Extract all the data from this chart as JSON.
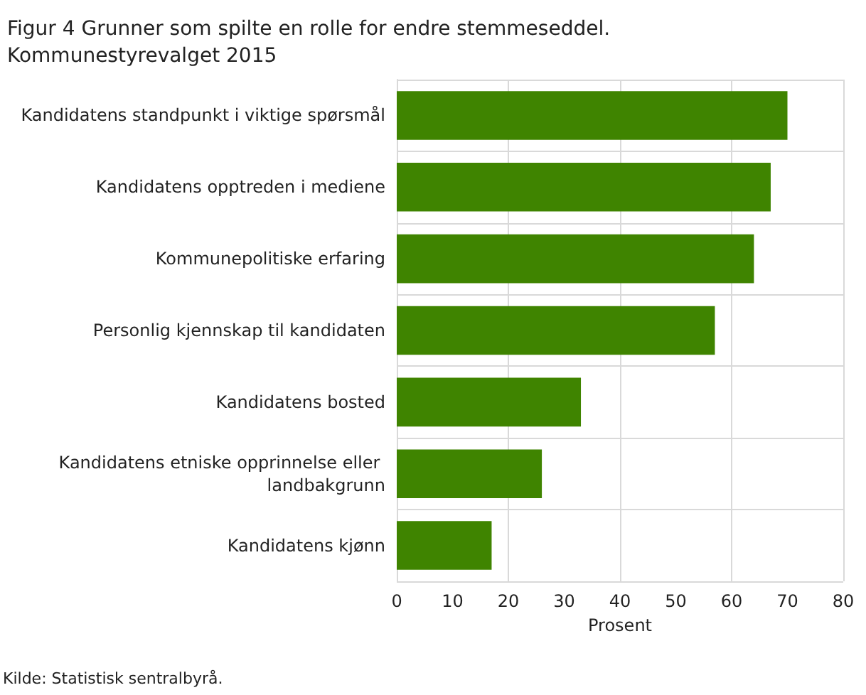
{
  "chart_data": {
    "type": "bar",
    "orientation": "horizontal",
    "title": "Figur 4 Grunner som spilte en rolle for endre stemmeseddel. Kommunestyrevalget 2015",
    "xlabel": "Prosent",
    "categories": [
      "Kandidatens standpunkt i viktige spørsmål",
      "Kandidatens opptreden i mediene",
      "Kommunepolitiske erfaring",
      "Personlig kjennskap til kandidaten",
      "Kandidatens bosted",
      "Kandidatens etniske opprinnelse eller landbakgrunn",
      "Kandidatens kjønn"
    ],
    "values": [
      70,
      67,
      64,
      57,
      33,
      26,
      17
    ],
    "color": "#3f8400",
    "xlim": [
      0,
      80
    ],
    "xticks": [
      0,
      10,
      20,
      30,
      40,
      50,
      60,
      70,
      80
    ],
    "grid": true,
    "annotations": [
      "Kilde: Statistisk sentralbyrå."
    ]
  }
}
